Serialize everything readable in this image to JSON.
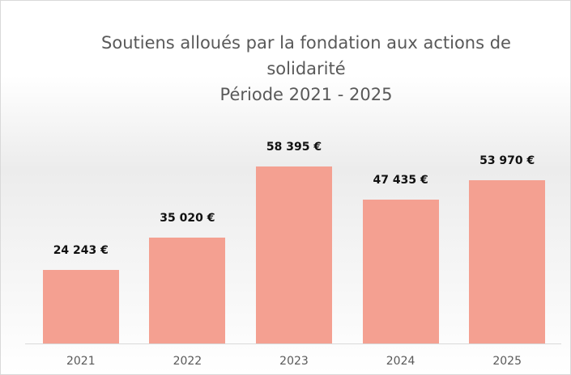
{
  "chart_data": {
    "type": "bar",
    "title": "Soutiens alloués par la fondation aux actions de solidarité",
    "subtitle": "Période 2021 - 2025",
    "categories": [
      "2021",
      "2022",
      "2023",
      "2024",
      "2025"
    ],
    "values": [
      24243,
      35020,
      58395,
      47435,
      53970
    ],
    "value_labels": [
      "24 243 €",
      "35 020 €",
      "58 395 €",
      "47 435 €",
      "53 970 €"
    ],
    "color": "#f4a091"
  }
}
